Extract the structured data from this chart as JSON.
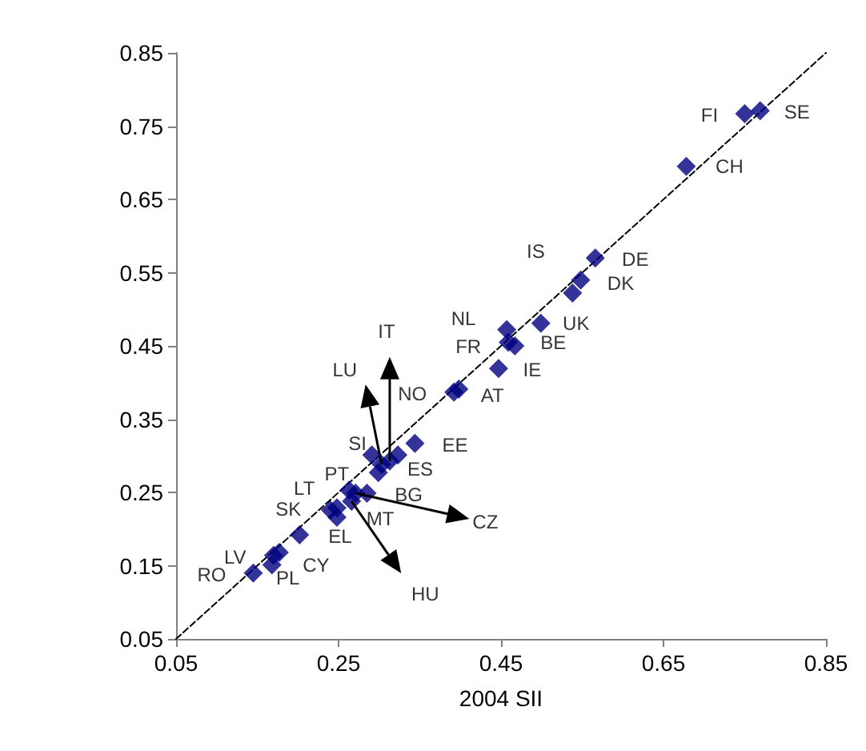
{
  "chart_data": {
    "type": "scatter",
    "xlabel": "2004 SII",
    "xlim": [
      0.05,
      0.85
    ],
    "ylim": [
      0.05,
      0.85
    ],
    "xticks": [
      0.05,
      0.25,
      0.45,
      0.65,
      0.85
    ],
    "yticks": [
      0.05,
      0.15,
      0.25,
      0.35,
      0.45,
      0.55,
      0.65,
      0.75,
      0.85
    ],
    "grid": false,
    "series": [
      {
        "type": "line",
        "x": [
          0.05,
          0.85
        ],
        "values": [
          0.05,
          0.85
        ],
        "color": "#000000",
        "line_style": "dashed",
        "marker": "none"
      },
      {
        "color": "#000080",
        "marker": "diamond",
        "x": [
          0.769,
          0.75,
          0.678,
          0.566,
          0.548,
          0.538,
          0.499,
          0.457,
          0.459,
          0.467,
          0.447,
          0.392,
          0.398,
          0.344,
          0.323,
          0.291,
          0.313,
          0.303,
          0.299,
          0.263,
          0.285,
          0.248,
          0.248,
          0.24,
          0.271,
          0.266,
          0.202,
          0.177,
          0.17,
          0.168,
          0.145
        ],
        "values": [
          0.771,
          0.767,
          0.695,
          0.57,
          0.54,
          0.522,
          0.481,
          0.472,
          0.455,
          0.45,
          0.419,
          0.387,
          0.391,
          0.317,
          0.301,
          0.301,
          0.293,
          0.288,
          0.277,
          0.253,
          0.249,
          0.229,
          0.216,
          0.226,
          0.249,
          0.238,
          0.192,
          0.168,
          0.164,
          0.151,
          0.14
        ]
      }
    ],
    "annotations": [
      {
        "text": "FI",
        "x": 0.75,
        "y": 0.767
      },
      {
        "text": "SE",
        "x": 0.769,
        "y": 0.771
      },
      {
        "text": "CH",
        "x": 0.678,
        "y": 0.695
      },
      {
        "text": "DE",
        "x": 0.566,
        "y": 0.57
      },
      {
        "text": "DK",
        "x": 0.548,
        "y": 0.54
      },
      {
        "text": "IS",
        "x": 0.538,
        "y": 0.522
      },
      {
        "text": "UK",
        "x": 0.499,
        "y": 0.481
      },
      {
        "text": "NL",
        "x": 0.457,
        "y": 0.472
      },
      {
        "text": "FR",
        "x": 0.459,
        "y": 0.455
      },
      {
        "text": "BE",
        "x": 0.467,
        "y": 0.45
      },
      {
        "text": "IE",
        "x": 0.447,
        "y": 0.419
      },
      {
        "text": "AT",
        "x": 0.392,
        "y": 0.387
      },
      {
        "text": "NO",
        "x": 0.398,
        "y": 0.391
      },
      "IT",
      "LU",
      {
        "text": "EE",
        "x": 0.344,
        "y": 0.317
      },
      {
        "text": "SI",
        "x": 0.291,
        "y": 0.301
      },
      {
        "text": "ES",
        "x": 0.323,
        "y": 0.301
      },
      {
        "text": "PT",
        "x": 0.299,
        "y": 0.277
      },
      {
        "text": "LT",
        "x": 0.263,
        "y": 0.253
      },
      {
        "text": "BG",
        "x": 0.285,
        "y": 0.249
      },
      {
        "text": "MT",
        "x": 0.248,
        "y": 0.229
      },
      {
        "text": "EL",
        "x": 0.248,
        "y": 0.216
      },
      "CZ",
      {
        "text": "SK",
        "x": 0.202,
        "y": 0.192
      },
      "HU",
      {
        "text": "LV",
        "x": 0.17,
        "y": 0.164
      },
      {
        "text": "CY",
        "x": 0.177,
        "y": 0.168
      },
      {
        "text": "PL",
        "x": 0.168,
        "y": 0.151
      },
      {
        "text": "RO",
        "x": 0.145,
        "y": 0.14
      }
    ]
  }
}
